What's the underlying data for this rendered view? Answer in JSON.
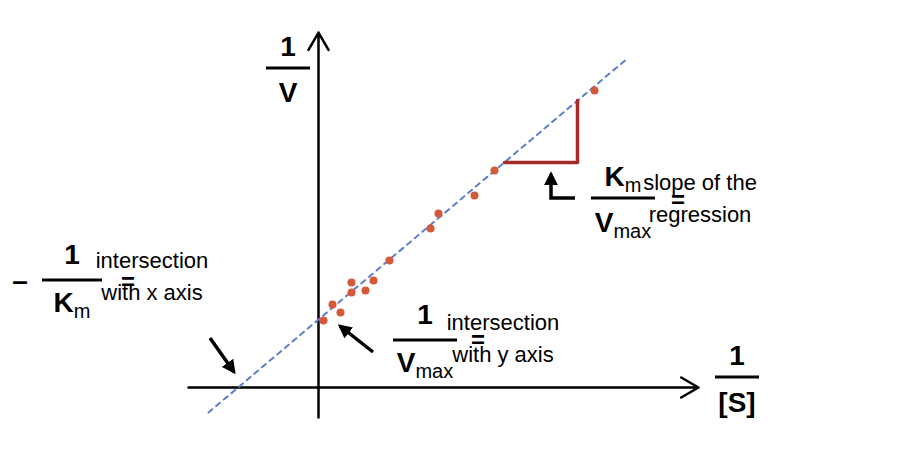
{
  "chart_data": {
    "type": "scatter",
    "x_label": {
      "numerator": "1",
      "denominator": "[S]"
    },
    "y_label": {
      "numerator": "1",
      "denominator": "V"
    },
    "xlim": [
      -1.3,
      3.8
    ],
    "ylim": [
      -0.3,
      3.55
    ],
    "xticks": [],
    "yticks": [],
    "tick_labels": false,
    "grid": false,
    "series": [
      {
        "type": "scatter",
        "color": "#d4583a",
        "marker": "circle",
        "x": [
          0.05,
          0.14,
          0.22,
          0.33,
          0.33,
          0.47,
          0.55,
          0.71,
          1.12,
          1.2,
          1.56,
          1.76,
          2.76
        ],
        "values": [
          0.67,
          0.83,
          0.75,
          0.95,
          1.05,
          0.97,
          1.07,
          1.27,
          1.59,
          1.74,
          1.92,
          2.17,
          2.97
        ]
      },
      {
        "type": "line",
        "color": "#5b7fcb",
        "line_style": "dashed",
        "x": [
          -1.1,
          3.1
        ],
        "values": [
          -0.25,
          3.3
        ]
      },
      {
        "type": "line",
        "color": "#a52a2a",
        "line_style": "solid",
        "x": [
          1.86,
          2.59,
          2.59
        ],
        "values": [
          2.25,
          2.25,
          2.87
        ]
      }
    ],
    "annotations": [
      {
        "sign": "–",
        "numerator": "1",
        "denominator": "K",
        "denominator_sub": "m",
        "equals": "=",
        "text": [
          "intersection",
          "with x axis"
        ]
      },
      {
        "numerator": "1",
        "denominator": "V",
        "denominator_sub": "max",
        "equals": "=",
        "text": [
          "intersection",
          "with y axis"
        ]
      },
      {
        "numerator": "K",
        "numerator_sub": "m",
        "denominator": "V",
        "denominator_sub": "max",
        "equals": "=",
        "text": [
          "slope of the",
          "regression"
        ]
      }
    ]
  }
}
